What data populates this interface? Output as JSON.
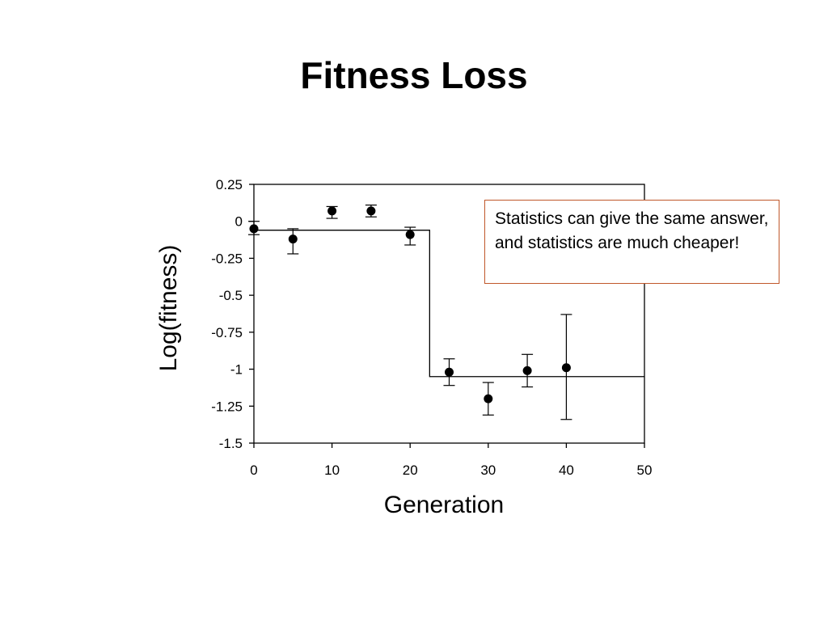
{
  "slide": {
    "title": "Fitness Loss",
    "callout": "Statistics can give the same answer, and statistics are much cheaper!"
  },
  "chart_data": {
    "type": "scatter",
    "title": "",
    "xlabel": "Generation",
    "ylabel": "Log(fitness)",
    "xlim": [
      0,
      50
    ],
    "ylim": [
      -1.5,
      0.25
    ],
    "xticks": [
      0,
      10,
      20,
      30,
      40,
      50
    ],
    "yticks": [
      0.25,
      0,
      -0.25,
      -0.5,
      -0.75,
      -1,
      -1.25,
      -1.5
    ],
    "ytick_labels": [
      "0.25",
      "0",
      "-0.25",
      "-0.5",
      "-0.75",
      "-1",
      "-1.25",
      "-1.5"
    ],
    "grid": false,
    "legend": false,
    "points": [
      {
        "x": 0,
        "y": -0.05,
        "err_low": -0.09,
        "err_high": 0.0
      },
      {
        "x": 5,
        "y": -0.12,
        "err_low": -0.22,
        "err_high": -0.05
      },
      {
        "x": 10,
        "y": 0.07,
        "err_low": 0.02,
        "err_high": 0.1
      },
      {
        "x": 15,
        "y": 0.07,
        "err_low": 0.03,
        "err_high": 0.11
      },
      {
        "x": 20,
        "y": -0.09,
        "err_low": -0.16,
        "err_high": -0.04
      },
      {
        "x": 25,
        "y": -1.02,
        "err_low": -1.11,
        "err_high": -0.93
      },
      {
        "x": 30,
        "y": -1.2,
        "err_low": -1.31,
        "err_high": -1.09
      },
      {
        "x": 35,
        "y": -1.01,
        "err_low": -1.12,
        "err_high": -0.9
      },
      {
        "x": 40,
        "y": -0.99,
        "err_low": -1.34,
        "err_high": -0.63
      }
    ],
    "step_line": {
      "x": [
        0,
        22.5,
        22.5,
        50
      ],
      "y": [
        -0.06,
        -0.06,
        -1.05,
        -1.05
      ]
    }
  }
}
